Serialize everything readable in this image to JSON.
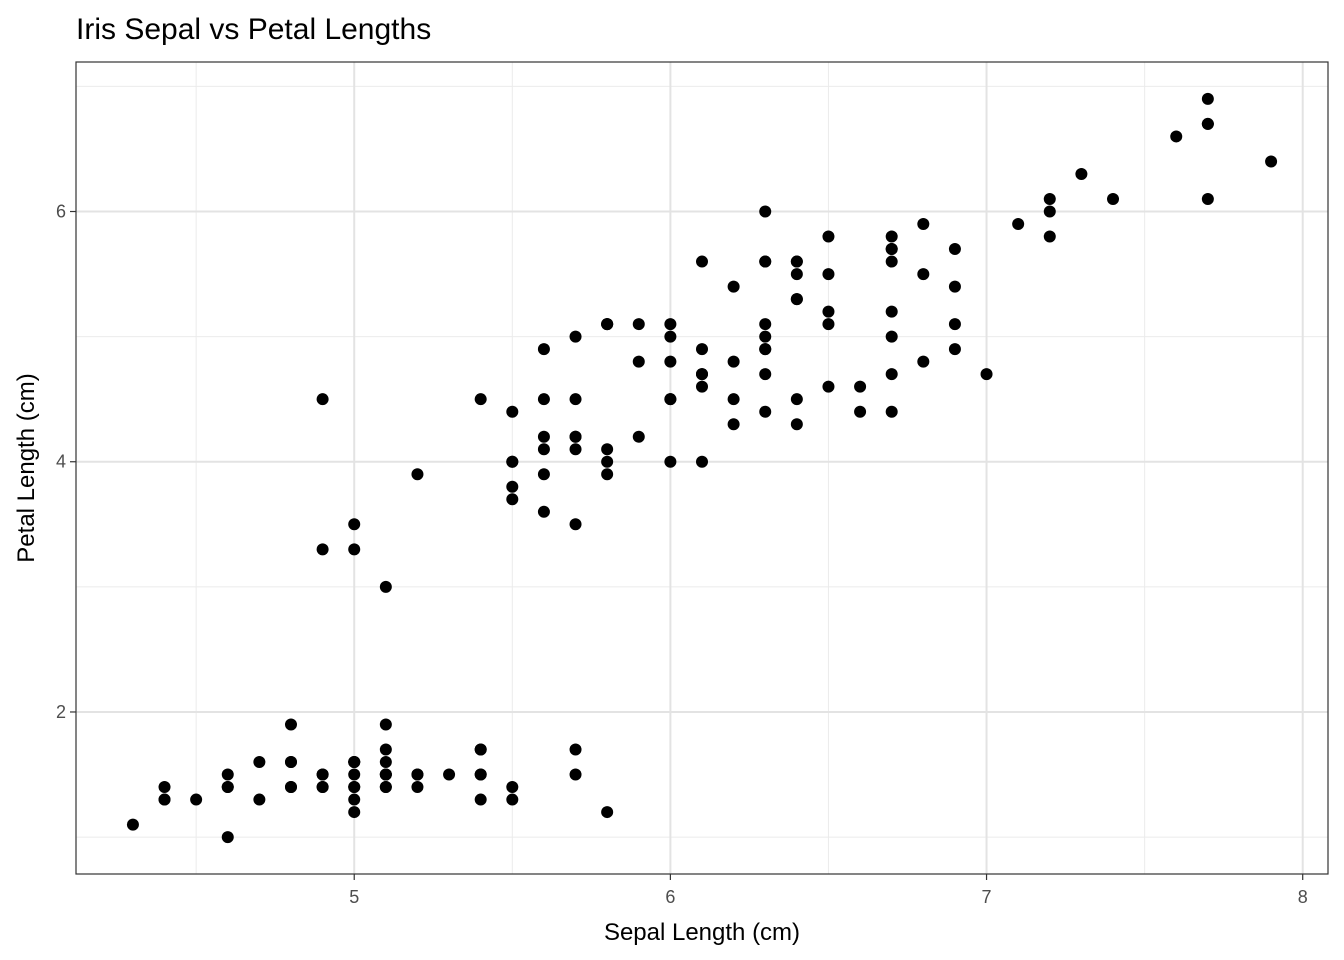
{
  "chart_data": {
    "type": "scatter",
    "title": "Iris Sepal vs Petal Lengths",
    "xlabel": "Sepal Length (cm)",
    "ylabel": "Petal Length (cm)",
    "xlim": [
      4.12,
      8.08
    ],
    "ylim": [
      0.705,
      7.195
    ],
    "x_ticks": [
      "5",
      "6",
      "7",
      "8"
    ],
    "y_ticks": [
      "2",
      "4",
      "6"
    ],
    "grid": true,
    "point_color": "#000000",
    "x": [
      5.1,
      4.9,
      4.7,
      4.6,
      5.0,
      5.4,
      4.6,
      5.0,
      4.4,
      4.9,
      5.4,
      4.8,
      4.8,
      4.3,
      5.8,
      5.7,
      5.4,
      5.1,
      5.7,
      5.1,
      5.4,
      5.1,
      4.6,
      5.1,
      4.8,
      5.0,
      5.0,
      5.2,
      5.2,
      4.7,
      4.8,
      5.4,
      5.2,
      5.5,
      4.9,
      5.0,
      5.5,
      4.9,
      4.4,
      5.1,
      5.0,
      4.5,
      4.4,
      5.0,
      5.1,
      4.8,
      5.1,
      4.6,
      5.3,
      5.0,
      7.0,
      6.4,
      6.9,
      5.5,
      6.5,
      5.7,
      6.3,
      4.9,
      6.6,
      5.2,
      5.0,
      5.9,
      6.0,
      6.1,
      5.6,
      6.7,
      5.6,
      5.8,
      6.2,
      5.6,
      5.9,
      6.1,
      6.3,
      6.1,
      6.4,
      6.6,
      6.8,
      6.7,
      6.0,
      5.7,
      5.5,
      5.5,
      5.8,
      6.0,
      5.4,
      6.0,
      6.7,
      6.3,
      5.6,
      5.5,
      5.5,
      6.1,
      5.8,
      5.0,
      5.6,
      5.7,
      5.7,
      6.2,
      5.1,
      5.7,
      6.3,
      5.8,
      7.1,
      6.3,
      6.5,
      7.6,
      4.9,
      7.3,
      6.7,
      7.2,
      6.5,
      6.4,
      6.8,
      5.7,
      5.8,
      6.4,
      6.5,
      7.7,
      7.7,
      6.0,
      6.9,
      5.6,
      7.7,
      6.3,
      6.7,
      7.2,
      6.2,
      6.1,
      6.4,
      7.2,
      7.4,
      7.9,
      6.4,
      6.3,
      6.1,
      7.7,
      6.3,
      6.4,
      6.0,
      6.9,
      6.7,
      6.9,
      5.8,
      6.8,
      6.7,
      6.7,
      6.3,
      6.5,
      6.2,
      5.9
    ],
    "y": [
      1.4,
      1.4,
      1.3,
      1.5,
      1.4,
      1.7,
      1.4,
      1.5,
      1.4,
      1.5,
      1.5,
      1.6,
      1.4,
      1.1,
      1.2,
      1.5,
      1.3,
      1.4,
      1.7,
      1.5,
      1.7,
      1.5,
      1.0,
      1.7,
      1.9,
      1.6,
      1.6,
      1.5,
      1.4,
      1.6,
      1.6,
      1.5,
      1.5,
      1.4,
      1.5,
      1.2,
      1.3,
      1.4,
      1.3,
      1.5,
      1.3,
      1.3,
      1.3,
      1.6,
      1.9,
      1.4,
      1.6,
      1.4,
      1.5,
      1.4,
      4.7,
      4.5,
      4.9,
      4.0,
      4.6,
      4.5,
      4.7,
      3.3,
      4.6,
      3.9,
      3.5,
      4.2,
      4.0,
      4.7,
      3.6,
      4.4,
      4.5,
      4.1,
      4.5,
      3.9,
      4.8,
      4.0,
      4.9,
      4.7,
      4.3,
      4.4,
      4.8,
      5.0,
      4.5,
      3.5,
      3.8,
      3.7,
      3.9,
      5.1,
      4.5,
      4.5,
      4.7,
      4.4,
      4.1,
      4.0,
      4.4,
      4.6,
      4.0,
      3.3,
      4.2,
      4.2,
      4.2,
      4.3,
      3.0,
      4.1,
      6.0,
      5.1,
      5.9,
      5.6,
      5.8,
      6.6,
      4.5,
      6.3,
      5.8,
      6.1,
      5.1,
      5.3,
      5.5,
      5.0,
      5.1,
      5.3,
      5.5,
      6.7,
      6.9,
      5.0,
      5.7,
      4.9,
      6.7,
      4.9,
      5.7,
      6.0,
      4.8,
      4.9,
      5.6,
      5.8,
      6.1,
      6.4,
      5.6,
      5.1,
      5.6,
      6.1,
      5.6,
      5.5,
      4.8,
      5.4,
      5.6,
      5.1,
      5.1,
      5.9,
      5.7,
      5.2,
      5.0,
      5.2,
      5.4,
      5.1
    ]
  }
}
